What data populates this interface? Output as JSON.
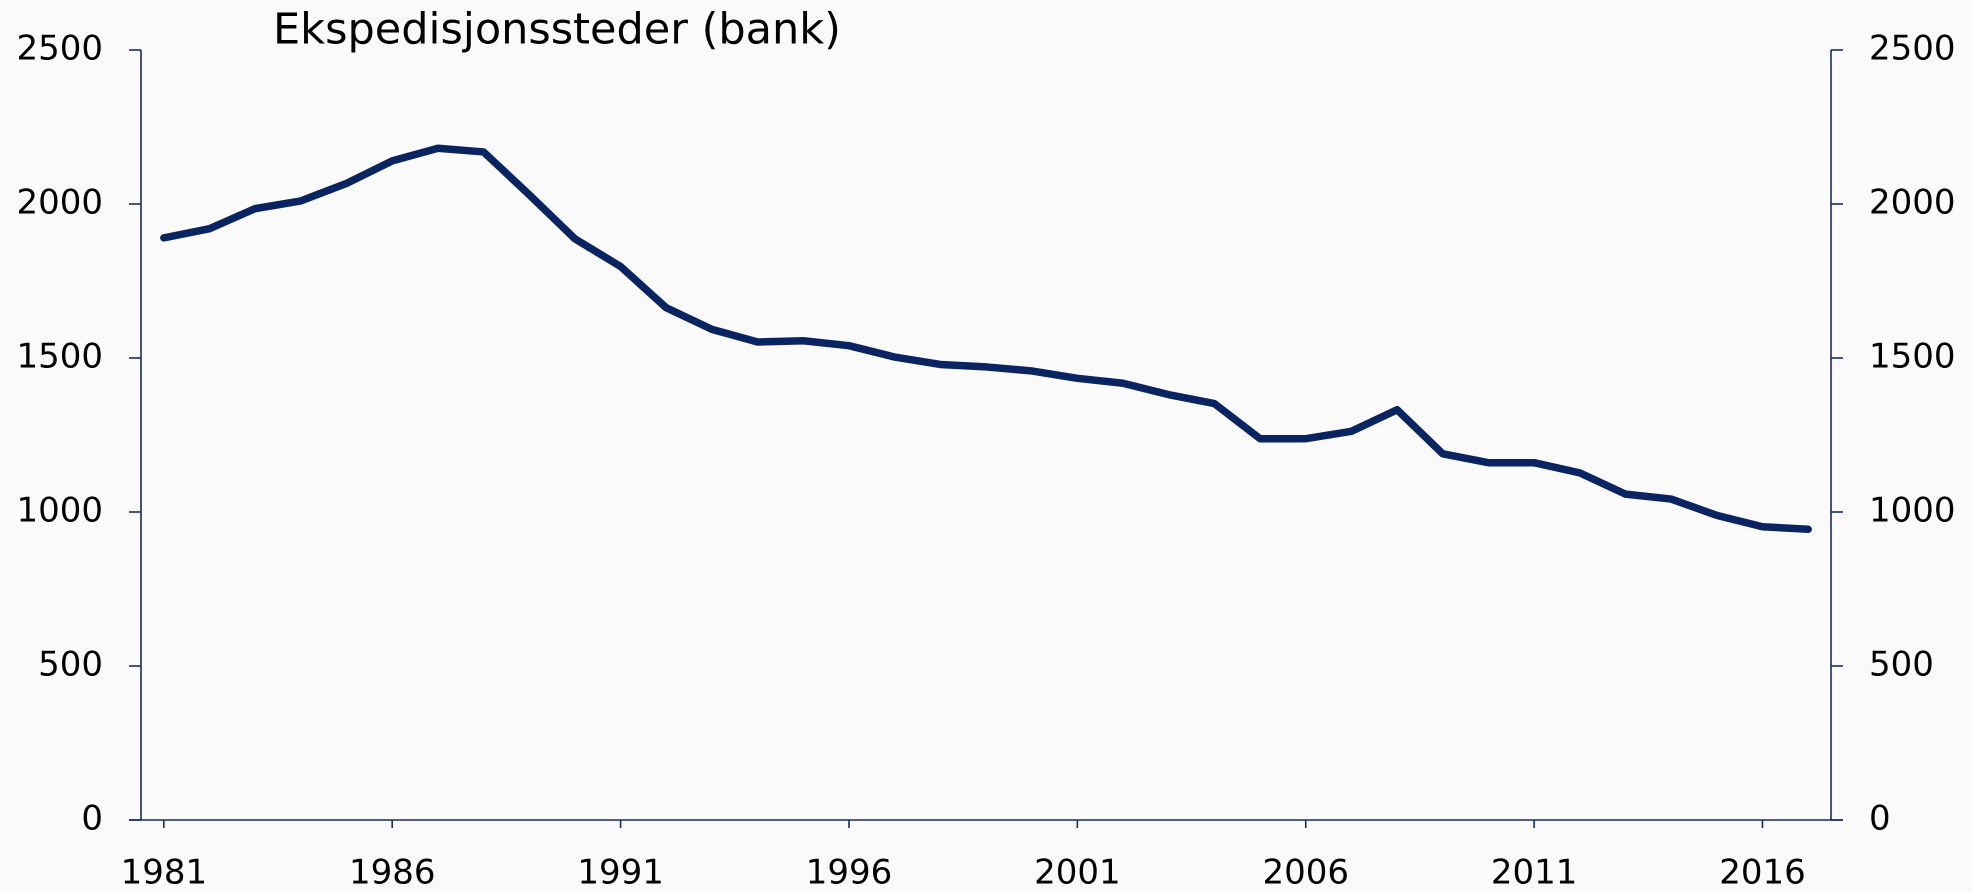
{
  "chart_data": {
    "type": "line",
    "title": "Ekspedisjonssteder (bank)",
    "x": [
      1981,
      1982,
      1983,
      1984,
      1985,
      1986,
      1987,
      1988,
      1989,
      1990,
      1991,
      1992,
      1993,
      1994,
      1995,
      1996,
      1997,
      1998,
      1999,
      2000,
      2001,
      2002,
      2003,
      2004,
      2005,
      2006,
      2007,
      2008,
      2009,
      2010,
      2011,
      2012,
      2013,
      2014,
      2015,
      2016,
      2017
    ],
    "series": [
      {
        "color": "#0a2461",
        "values": [
          1890,
          1920,
          1985,
          2010,
          2067,
          2140,
          2181,
          2169,
          2030,
          1887,
          1797,
          1663,
          1593,
          1552,
          1556,
          1540,
          1503,
          1479,
          1471,
          1458,
          1434,
          1418,
          1381,
          1352,
          1238,
          1238,
          1262,
          1332,
          1189,
          1160,
          1160,
          1127,
          1058,
          1042,
          989,
          952,
          944
        ]
      }
    ],
    "xlim": [
      1980.5,
      2017.5
    ],
    "xticks": [
      1981,
      1986,
      1991,
      1996,
      2001,
      2006,
      2011,
      2016
    ],
    "ylim": [
      0,
      2500
    ],
    "yticks": [
      0,
      500,
      1000,
      1500,
      2000,
      2500
    ],
    "y2lim": [
      0,
      2500
    ],
    "y2ticks": [
      0,
      500,
      1000,
      1500,
      2000,
      2500
    ],
    "grid": false
  }
}
